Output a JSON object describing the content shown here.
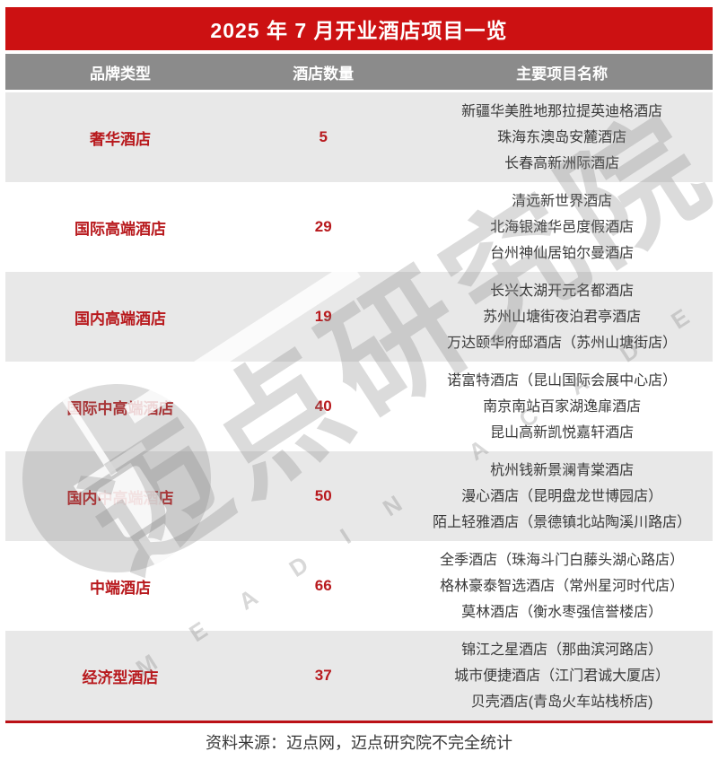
{
  "title": "2025 年 7 月开业酒店项目一览",
  "columns": [
    "品牌类型",
    "酒店数量",
    "主要项目名称"
  ],
  "rows": [
    {
      "category": "奢华酒店",
      "count": "5",
      "projects": [
        "新疆华美胜地那拉提英迪格酒店",
        "珠海东澳岛安麓酒店",
        "长春高新洲际酒店"
      ]
    },
    {
      "category": "国际高端酒店",
      "count": "29",
      "projects": [
        "清远新世界酒店",
        "北海银滩华邑度假酒店",
        "台州神仙居铂尔曼酒店"
      ]
    },
    {
      "category": "国内高端酒店",
      "count": "19",
      "projects": [
        "长兴太湖开元名都酒店",
        "苏州山塘街夜泊君亭酒店",
        "万达颐华府邸酒店（苏州山塘街店）"
      ]
    },
    {
      "category": "国际中高端酒店",
      "count": "40",
      "projects": [
        "诺富特酒店（昆山国际会展中心店）",
        "南京南站百家湖逸扉酒店",
        "昆山高新凯悦嘉轩酒店"
      ]
    },
    {
      "category": "国内中高端酒店",
      "count": "50",
      "projects": [
        "杭州钱新景澜青棠酒店",
        "漫心酒店（昆明盘龙世博园店）",
        "陌上轻雅酒店（景德镇北站陶溪川路店）"
      ]
    },
    {
      "category": "中端酒店",
      "count": "66",
      "projects": [
        "全季酒店（珠海斗门白藤头湖心路店）",
        "格林豪泰智选酒店（常州星河时代店）",
        "莫林酒店（衡水枣强信誉楼店）"
      ]
    },
    {
      "category": "经济型酒店",
      "count": "37",
      "projects": [
        "锦江之星酒店（那曲滨河路店）",
        "城市便捷酒店（江门君诚大厦店）",
        "贝壳酒店(青岛火车站栈桥店)"
      ]
    }
  ],
  "footer": {
    "text": "资料来源：迈点网，迈点研究院不完全统计"
  },
  "watermark": {
    "cn": "迈点研究院",
    "en": "M E A D I N　 A C A D E M Y"
  },
  "colors": {
    "title_bar_red": "#cc1112",
    "header_gray": "#8b8b8b",
    "row_shade_gray": "#e8e8e8",
    "category_red": "#b8191d",
    "project_text": "#3a3a3a",
    "bottom_rule_red": "#bb1016"
  }
}
